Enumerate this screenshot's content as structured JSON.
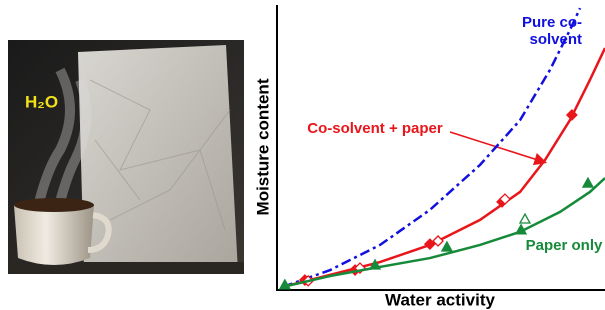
{
  "chart_data": {
    "type": "line",
    "photo_label": "H₂O",
    "xlabel": "Water activity",
    "ylabel": "Moisture content",
    "xlim": [
      0,
      1
    ],
    "ylim": [
      0,
      100
    ],
    "series": [
      {
        "name": "Pure co-solvent",
        "color": "#1010e0",
        "dash": "dashdot",
        "x": [
          0.018,
          0.162,
          0.314,
          0.466,
          0.619,
          0.741,
          0.832,
          0.893,
          0.924
        ],
        "values": [
          1.1,
          7.0,
          15.8,
          28.1,
          43.9,
          59.6,
          77.2,
          91.2,
          98.9
        ]
      },
      {
        "name": "Co-solvent + paper",
        "color": "#e8161b",
        "marker": "diamond",
        "x": [
          0.018,
          0.162,
          0.314,
          0.466,
          0.619,
          0.741,
          0.817,
          0.893,
          0.954,
          1.0
        ],
        "values": [
          1.1,
          5.3,
          9.8,
          15.8,
          24.6,
          34.4,
          45.6,
          59.6,
          73.7,
          84.9
        ],
        "points_x": [
          0.085,
          0.238,
          0.466,
          0.686,
          0.899
        ],
        "points_y": [
          3.5,
          7.0,
          16.1,
          30.9,
          61.4
        ],
        "open_x": [
          0.095,
          0.253,
          0.491,
          0.695
        ],
        "open_y": [
          3.2,
          7.7,
          17.2,
          31.9
        ]
      },
      {
        "name": "Paper only",
        "color": "#178a3a",
        "marker": "triangle",
        "x": [
          0.018,
          0.162,
          0.314,
          0.466,
          0.619,
          0.741,
          0.863,
          0.954,
          1.0
        ],
        "values": [
          1.1,
          4.9,
          8.1,
          11.2,
          15.8,
          20.4,
          27.4,
          34.4,
          39.3
        ],
        "points_x": [
          0.024,
          0.299,
          0.518,
          0.744,
          0.948
        ],
        "points_y": [
          1.8,
          8.8,
          15.1,
          21.1,
          37.5
        ],
        "open_x": [
          0.756
        ],
        "open_y": [
          24.9
        ]
      }
    ]
  }
}
